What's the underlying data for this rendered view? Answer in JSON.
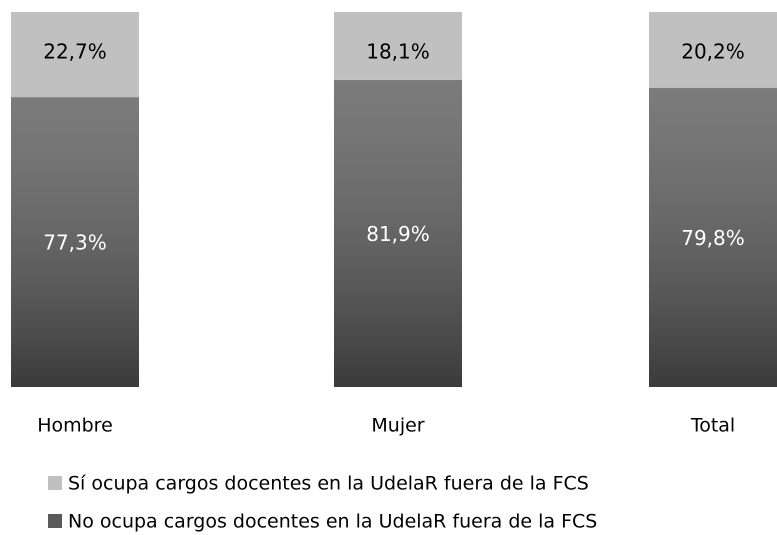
{
  "chart_data": {
    "type": "stacked_bar",
    "categories": [
      "Hombre",
      "Mujer",
      "Total"
    ],
    "series": [
      {
        "name": "No ocupa cargos docentes en la UdelaR fuera de la FCS",
        "color": "#5a5a5a",
        "values": [
          77.3,
          81.9,
          79.8
        ],
        "value_labels": [
          "77,3%",
          "81,9%",
          "79,8%"
        ]
      },
      {
        "name": "Sí ocupa cargos docentes en la UdelaR fuera de la FCS",
        "color": "#c0c0c0",
        "values": [
          22.7,
          18.1,
          20.2
        ],
        "value_labels": [
          "22,7%",
          "18,1%",
          "20,2%"
        ]
      }
    ],
    "ylim": [
      0,
      100
    ]
  }
}
